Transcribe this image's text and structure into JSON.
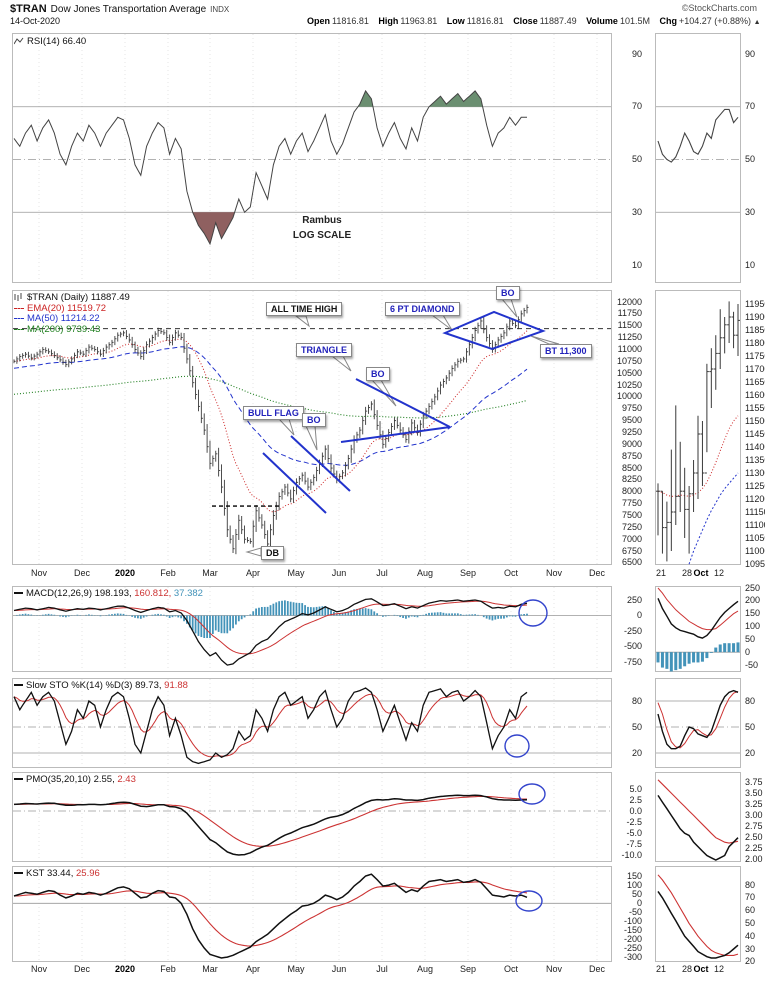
{
  "header": {
    "symbol": "$TRAN",
    "name": "Dow Jones Transportation Average",
    "exchange": "INDX",
    "credit": "©StockCharts.com",
    "date": "14-Oct-2020",
    "quote": {
      "open_label": "Open",
      "open": "11816.81",
      "high_label": "High",
      "high": "11963.81",
      "low_label": "Low",
      "low": "11816.81",
      "close_label": "Close",
      "close": "11887.49",
      "volume_label": "Volume",
      "volume": "101.5M",
      "chg_label": "Chg",
      "chg": "+104.27 (+0.88%)",
      "chg_arrow": "▲"
    }
  },
  "axis": {
    "months": [
      "Nov",
      "Dec",
      "2020",
      "Feb",
      "Mar",
      "Apr",
      "May",
      "Jun",
      "Jul",
      "Aug",
      "Sep",
      "Oct",
      "Nov",
      "Dec"
    ],
    "mini_dates": [
      "21",
      "28",
      "Oct",
      "12"
    ]
  },
  "annotations": {
    "ath": "ALL TIME HIGH",
    "diamond": "6 PT DIAMOND",
    "bo": "BO",
    "bt": "BT 11,300",
    "triangle": "TRIANGLE",
    "bull_flag": "BULL FLAG",
    "db": "DB",
    "note_line1": "Rambus",
    "note_line2": "LOG SCALE"
  },
  "colors": {
    "bar": "#3a3a3a",
    "rsi_line": "#444444",
    "rsi_fill_high": "#6b8f71",
    "rsi_fill_low": "#8f6060",
    "ema20": "#cc2222",
    "ma50": "#2233cc",
    "ma200": "#1e7e1e",
    "macd_line": "#111111",
    "signal": "#cc3333",
    "histogram": "#4393b9",
    "annotation_blue": "#2233cc",
    "grid": "#999999"
  },
  "chart_data": {
    "rsi": {
      "type": "line",
      "label": "RSI(14) 66.40",
      "ticks": [
        90,
        70,
        50,
        30,
        10
      ],
      "overbought": 70,
      "mid": 50,
      "oversold": 30,
      "ylim": [
        0,
        100
      ],
      "values": [
        58,
        55,
        60,
        63,
        57,
        62,
        65,
        60,
        52,
        48,
        55,
        60,
        57,
        63,
        60,
        55,
        60,
        63,
        66,
        65,
        58,
        48,
        44,
        55,
        60,
        64,
        62,
        52,
        58,
        54,
        38,
        30,
        25,
        22,
        18,
        26,
        20,
        24,
        28,
        35,
        30,
        32,
        45,
        40,
        35,
        48,
        55,
        58,
        52,
        57,
        60,
        53,
        57,
        62,
        67,
        57,
        52,
        56,
        62,
        68,
        71,
        76,
        73,
        62,
        55,
        60,
        64,
        58,
        54,
        62,
        57,
        66,
        70,
        72,
        74,
        71,
        73,
        75,
        72,
        74,
        76,
        73,
        63,
        55,
        60,
        62,
        66,
        63,
        66,
        66
      ],
      "mini_values": [
        57,
        52,
        50,
        49,
        51,
        55,
        60,
        57,
        53,
        52,
        55,
        60,
        58,
        65,
        67,
        69,
        69,
        64,
        66
      ]
    },
    "price": {
      "type": "ohlc",
      "title": "$TRAN (Daily) 11887.49",
      "legend": [
        {
          "text": "EMA(20) 11519.72",
          "color": "#cc2222"
        },
        {
          "text": "MA(50) 11214.22",
          "color": "#2233cc"
        },
        {
          "text": "MA(200) 9739.43",
          "color": "#1e7e1e"
        }
      ],
      "ticks": [
        12000,
        11750,
        11500,
        11250,
        11000,
        10750,
        10500,
        10250,
        10000,
        9750,
        9500,
        9250,
        9000,
        8750,
        8500,
        8250,
        8000,
        7750,
        7500,
        7250,
        7000,
        6750,
        6500
      ],
      "ylim": [
        6500,
        12000
      ],
      "all_time_high_line": 11440,
      "double_bottom_line": 7700,
      "closes": [
        10750,
        10850,
        10900,
        10820,
        10900,
        11000,
        10950,
        10870,
        10780,
        10680,
        10800,
        10950,
        10900,
        11050,
        11000,
        10900,
        11050,
        11150,
        11300,
        11350,
        11200,
        11000,
        10850,
        11100,
        11250,
        11400,
        11350,
        11150,
        11350,
        11250,
        10800,
        10300,
        9800,
        9300,
        8600,
        8800,
        8100,
        7200,
        6800,
        7400,
        7000,
        6950,
        7600,
        7300,
        6900,
        7500,
        7900,
        8100,
        7850,
        8200,
        8350,
        8100,
        8300,
        8600,
        8900,
        8500,
        8250,
        8400,
        8700,
        9100,
        9300,
        9700,
        9850,
        9400,
        9000,
        9250,
        9500,
        9300,
        9100,
        9450,
        9250,
        9600,
        9800,
        10000,
        10250,
        10400,
        10600,
        10750,
        10800,
        11100,
        11400,
        11600,
        11250,
        11000,
        11200,
        11350,
        11600,
        11500,
        11750,
        11887
      ],
      "mini": {
        "ticks": [
          11950,
          11900,
          11850,
          11800,
          11750,
          11700,
          11650,
          11600,
          11550,
          11500,
          11450,
          11400,
          11350,
          11300,
          11250,
          11200,
          11150,
          11100,
          11050,
          11000,
          10950
        ],
        "bars_lo_hi_close": [
          [
            11060,
            11260,
            11230
          ],
          [
            10990,
            11230,
            11090
          ],
          [
            10960,
            11190,
            11110
          ],
          [
            11000,
            11390,
            11150
          ],
          [
            11100,
            11560,
            11210
          ],
          [
            11150,
            11420,
            11230
          ],
          [
            11050,
            11320,
            11160
          ],
          [
            10990,
            11250,
            11220
          ],
          [
            11150,
            11350,
            11300
          ],
          [
            11200,
            11520,
            11450
          ],
          [
            11250,
            11500,
            11300
          ],
          [
            11380,
            11720,
            11690
          ],
          [
            11550,
            11780,
            11700
          ],
          [
            11620,
            11830,
            11760
          ],
          [
            11700,
            11930,
            11820
          ],
          [
            11760,
            11900,
            11870
          ],
          [
            11800,
            11960,
            11900
          ],
          [
            11780,
            11920,
            11830
          ],
          [
            11750,
            11950,
            11887
          ]
        ],
        "ema20": [
          11230,
          11225,
          11215,
          11210,
          11212,
          11215,
          11213,
          11210,
          11215,
          11225,
          11240,
          11265,
          11300,
          11340,
          11385,
          11430,
          11470,
          11500,
          11520
        ],
        "ma50": [
          10600,
          10650,
          10700,
          10750,
          10800,
          10850,
          10900,
          10950,
          11000,
          11040,
          11080,
          11120,
          11155,
          11185,
          11215,
          11240,
          11260,
          11280,
          11300
        ]
      }
    },
    "macd": {
      "type": "line",
      "label_parts": [
        {
          "text": "MACD(12,26,9) 198.193,",
          "color": "#111111"
        },
        {
          "text": " 160.812,",
          "color": "#cc3333"
        },
        {
          "text": " 37.382",
          "color": "#4393b9"
        }
      ],
      "ticks": [
        250,
        0,
        -250,
        -500,
        -750
      ],
      "values": [
        80,
        100,
        120,
        110,
        90,
        110,
        130,
        120,
        90,
        70,
        90,
        110,
        100,
        120,
        110,
        90,
        110,
        130,
        150,
        150,
        120,
        80,
        50,
        80,
        110,
        130,
        120,
        60,
        80,
        40,
        -80,
        -250,
        -420,
        -550,
        -650,
        -600,
        -720,
        -800,
        -780,
        -700,
        -650,
        -600,
        -480,
        -420,
        -380,
        -280,
        -180,
        -100,
        -60,
        -20,
        30,
        10,
        40,
        90,
        140,
        100,
        60,
        80,
        120,
        180,
        220,
        260,
        270,
        220,
        160,
        170,
        190,
        150,
        110,
        140,
        120,
        160,
        200,
        220,
        240,
        230,
        240,
        250,
        230,
        240,
        250,
        230,
        170,
        120,
        130,
        120,
        150,
        140,
        180,
        198
      ],
      "mini": {
        "ticks": [
          250,
          200,
          150,
          100,
          50,
          0,
          -50
        ],
        "macd": [
          210,
          170,
          140,
          110,
          95,
          85,
          80,
          75,
          70,
          60,
          55,
          65,
          85,
          110,
          135,
          155,
          170,
          185,
          198
        ],
        "signal": [
          250,
          230,
          205,
          185,
          165,
          150,
          135,
          120,
          110,
          100,
          92,
          88,
          88,
          92,
          105,
          120,
          135,
          150,
          160
        ]
      }
    },
    "sto": {
      "type": "line",
      "label_parts": [
        {
          "text": "Slow STO %K(14) %D(3) 89.73,",
          "color": "#111111"
        },
        {
          "text": " 91.88",
          "color": "#cc3333"
        }
      ],
      "ticks": [
        80,
        50,
        20
      ],
      "values": [
        85,
        70,
        80,
        90,
        75,
        85,
        90,
        80,
        55,
        30,
        45,
        70,
        60,
        80,
        75,
        50,
        70,
        85,
        90,
        85,
        60,
        30,
        20,
        45,
        70,
        85,
        75,
        40,
        60,
        40,
        15,
        10,
        8,
        10,
        12,
        20,
        15,
        18,
        25,
        45,
        35,
        40,
        70,
        60,
        45,
        70,
        85,
        90,
        75,
        80,
        85,
        60,
        70,
        85,
        92,
        70,
        50,
        60,
        80,
        90,
        92,
        95,
        90,
        70,
        45,
        60,
        75,
        55,
        35,
        55,
        45,
        75,
        90,
        92,
        94,
        85,
        90,
        92,
        80,
        85,
        92,
        85,
        55,
        25,
        40,
        50,
        70,
        60,
        85,
        90
      ],
      "mini": {
        "ticks": [
          80,
          50,
          20
        ],
        "k": [
          65,
          45,
          30,
          25,
          25,
          28,
          40,
          50,
          48,
          42,
          40,
          38,
          45,
          60,
          75,
          85,
          90,
          92,
          90
        ],
        "d": [
          78,
          65,
          47,
          33,
          27,
          26,
          31,
          39,
          46,
          47,
          43,
          40,
          41,
          48,
          60,
          73,
          83,
          89,
          91
        ]
      }
    },
    "pmo": {
      "type": "line",
      "label_parts": [
        {
          "text": "PMO(35,20,10) 2.55,",
          "color": "#111111"
        },
        {
          "text": " 2.43",
          "color": "#cc3333"
        }
      ],
      "ticks": [
        "5.0",
        "2.5",
        "0.0",
        "-2.5",
        "-5.0",
        "-7.5",
        "-10.0"
      ],
      "values": [
        1.5,
        1.6,
        1.7,
        1.65,
        1.6,
        1.7,
        1.8,
        1.75,
        1.5,
        1.3,
        1.3,
        1.4,
        1.4,
        1.5,
        1.5,
        1.4,
        1.5,
        1.7,
        1.9,
        2.0,
        1.9,
        1.5,
        1.1,
        1.0,
        1.2,
        1.4,
        1.4,
        1.0,
        0.9,
        0.5,
        -0.5,
        -2.0,
        -3.5,
        -5.0,
        -6.5,
        -7.2,
        -8.3,
        -9.3,
        -9.8,
        -10.0,
        -9.9,
        -9.5,
        -8.8,
        -8.2,
        -7.8,
        -7.0,
        -6.2,
        -5.5,
        -5.0,
        -4.4,
        -3.8,
        -3.4,
        -3.0,
        -2.4,
        -1.8,
        -1.4,
        -1.2,
        -0.8,
        -0.2,
        0.6,
        1.2,
        1.9,
        2.4,
        2.6,
        2.5,
        2.6,
        2.8,
        2.7,
        2.5,
        2.5,
        2.4,
        2.6,
        2.9,
        3.1,
        3.3,
        3.4,
        3.5,
        3.6,
        3.5,
        3.5,
        3.6,
        3.5,
        3.2,
        2.8,
        2.6,
        2.5,
        2.5,
        2.45,
        2.5,
        2.55
      ],
      "mini": {
        "ticks": [
          "3.75",
          "3.50",
          "3.25",
          "3.00",
          "2.75",
          "2.50",
          "2.25",
          "2.00"
        ],
        "pmo": [
          3.45,
          3.3,
          3.15,
          3.0,
          2.85,
          2.7,
          2.6,
          2.55,
          2.4,
          2.3,
          2.2,
          2.1,
          2.05,
          2.0,
          2.05,
          2.1,
          2.3,
          2.4,
          2.5
        ],
        "signal": [
          3.8,
          3.7,
          3.6,
          3.5,
          3.4,
          3.3,
          3.2,
          3.1,
          3.0,
          2.9,
          2.8,
          2.7,
          2.6,
          2.5,
          2.45,
          2.4,
          2.38,
          2.4,
          2.42
        ]
      }
    },
    "kst": {
      "type": "line",
      "label_parts": [
        {
          "text": "KST 33.44,",
          "color": "#111111"
        },
        {
          "text": " 25.96",
          "color": "#cc3333"
        }
      ],
      "ticks": [
        150,
        100,
        50,
        0,
        -50,
        -100,
        -150,
        -200,
        -250,
        -300
      ],
      "values": [
        40,
        50,
        60,
        55,
        50,
        60,
        70,
        65,
        45,
        30,
        40,
        55,
        50,
        60,
        55,
        45,
        55,
        70,
        85,
        90,
        80,
        55,
        30,
        35,
        55,
        70,
        65,
        35,
        30,
        0,
        -60,
        -140,
        -200,
        -245,
        -280,
        -290,
        -300,
        -295,
        -285,
        -270,
        -255,
        -240,
        -210,
        -190,
        -170,
        -140,
        -110,
        -85,
        -60,
        -40,
        -15,
        -10,
        0,
        20,
        45,
        35,
        20,
        35,
        60,
        95,
        120,
        150,
        160,
        130,
        95,
        100,
        110,
        85,
        60,
        75,
        65,
        95,
        120,
        125,
        130,
        120,
        125,
        130,
        115,
        120,
        130,
        115,
        80,
        45,
        40,
        35,
        45,
        40,
        45,
        33
      ],
      "mini": {
        "ticks": [
          80,
          70,
          60,
          50,
          40,
          30,
          20
        ],
        "kst": [
          75,
          70,
          64,
          58,
          52,
          46,
          40,
          36,
          32,
          28,
          26,
          24,
          23,
          23,
          24,
          25,
          27,
          30,
          33
        ],
        "signal": [
          88,
          84,
          79,
          74,
          68,
          62,
          56,
          50,
          45,
          40,
          36,
          32,
          29,
          27,
          26,
          25,
          25,
          25,
          26
        ]
      }
    }
  }
}
